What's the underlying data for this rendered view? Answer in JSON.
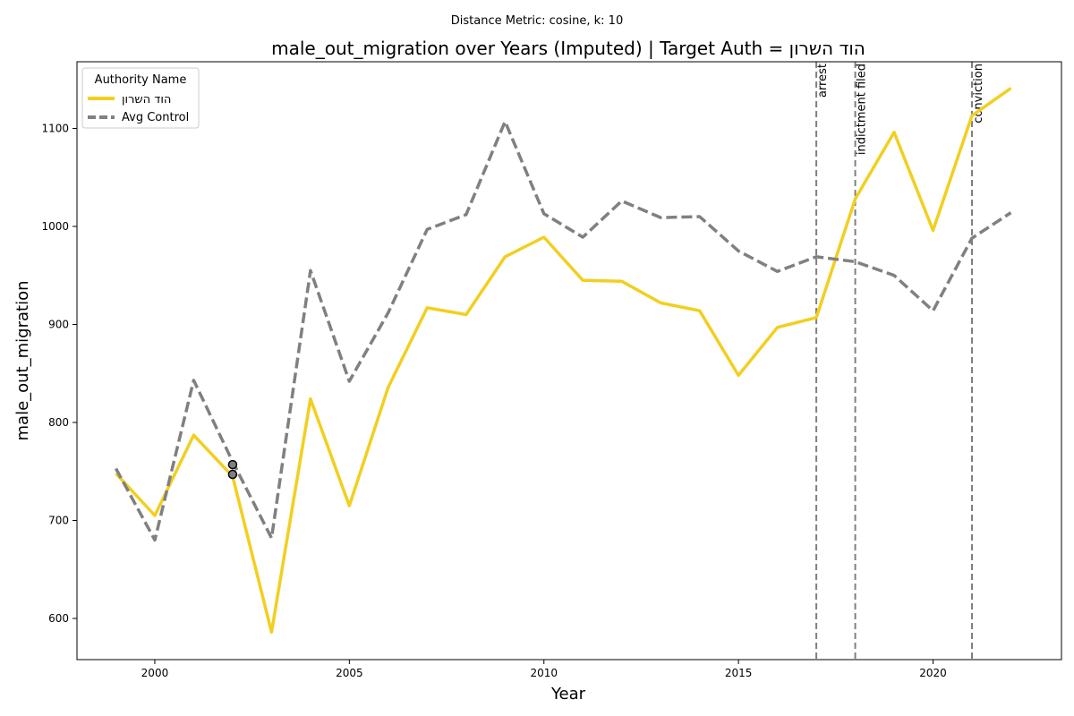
{
  "chart_data": {
    "type": "line",
    "suptitle": "Distance Metric: cosine, k: 10",
    "title": "male_out_migration over Years (Imputed) | Target Auth = הוד השרון",
    "xlabel": "Year",
    "ylabel": "male_out_migration",
    "xlim": [
      1998,
      2023.3
    ],
    "ylim": [
      558,
      1168
    ],
    "x_ticks": [
      2000,
      2005,
      2010,
      2015,
      2020
    ],
    "y_ticks": [
      600,
      700,
      800,
      900,
      1000,
      1100
    ],
    "grid": false,
    "legend": {
      "title": "Authority Name",
      "placement": "top-left"
    },
    "x": [
      1999,
      2000,
      2001,
      2002,
      2003,
      2004,
      2005,
      2006,
      2007,
      2008,
      2009,
      2010,
      2011,
      2012,
      2013,
      2014,
      2015,
      2016,
      2017,
      2018,
      2019,
      2020,
      2021,
      2022
    ],
    "series": [
      {
        "name": "הוד השרון",
        "color": "#f2cf20",
        "style": "solid",
        "values": [
          748,
          705,
          787,
          745,
          586,
          824,
          715,
          836,
          917,
          910,
          969,
          989,
          945,
          944,
          922,
          914,
          848,
          897,
          907,
          1028,
          1096,
          996,
          1113,
          1141
        ]
      },
      {
        "name": "Avg Control",
        "color": "#808080",
        "style": "dashed",
        "values": [
          753,
          680,
          843,
          760,
          682,
          955,
          842,
          912,
          997,
          1012,
          1107,
          1013,
          989,
          1026,
          1009,
          1010,
          975,
          954,
          969,
          964,
          950,
          914,
          988,
          1014
        ]
      }
    ],
    "markers": [
      {
        "x": 2002,
        "y": 757
      },
      {
        "x": 2002,
        "y": 747
      }
    ],
    "events": [
      {
        "x": 2017,
        "label": "arrest"
      },
      {
        "x": 2018,
        "label": "indictment filed"
      },
      {
        "x": 2021,
        "label": "conviction"
      }
    ]
  }
}
